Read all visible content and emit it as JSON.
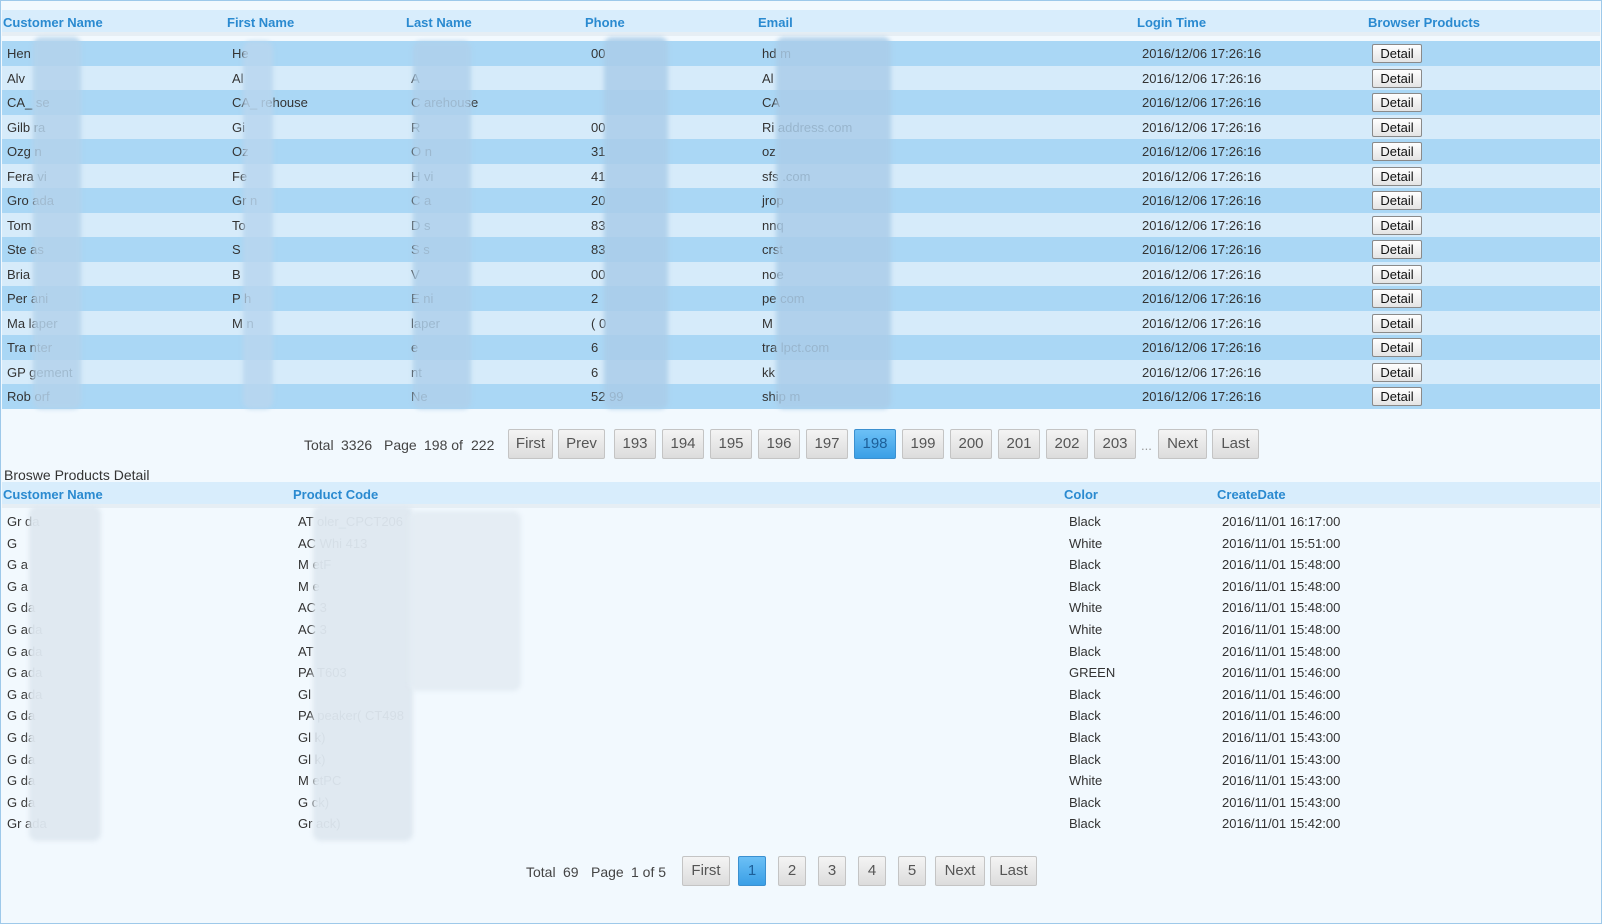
{
  "customers": {
    "columns": [
      "Customer Name",
      "First Name",
      "Last Name",
      "Phone",
      "Email",
      "Login Time",
      "Browser Products"
    ],
    "detail_label": "Detail",
    "rows": [
      [
        "Hen",
        "He",
        "",
        "00",
        "hd                              m",
        "2016/12/06 17:26:16"
      ],
      [
        "Alv",
        "Al",
        "A",
        "",
        "Al",
        "2016/12/06 17:26:16"
      ],
      [
        "CA_            se",
        "CA_        rehouse",
        "C        arehouse",
        "",
        "CA",
        "2016/12/06 17:26:16"
      ],
      [
        "Gilb          ra",
        "Gi",
        "R",
        "00",
        "Ri                          address.com",
        "2016/12/06 17:26:16"
      ],
      [
        "Ozg           n",
        "Oz",
        "O        n",
        "31",
        "oz",
        "2016/12/06 17:26:16"
      ],
      [
        "Fera          vi",
        "Fe",
        "H        vi",
        "41",
        "sfs                        .com",
        "2016/12/06 17:26:16"
      ],
      [
        "Gro           ada",
        "Gr          n",
        "C        a",
        "20",
        "jrop",
        "2016/12/06 17:26:16"
      ],
      [
        "Tom",
        "To",
        "D        s",
        "83",
        "nnq",
        "2016/12/06 17:26:16"
      ],
      [
        "Ste           as",
        "S",
        "S        s",
        "83",
        "crst",
        "2016/12/06 17:26:16"
      ],
      [
        "Bria",
        "B",
        "V",
        "00",
        "noe",
        "2016/12/06 17:26:16"
      ],
      [
        "Per           ani",
        "P          h",
        "E        ni",
        "2",
        "pe                          com",
        "2016/12/06 17:26:16"
      ],
      [
        "Ma           laper",
        "M          n",
        "        laper",
        "(                0",
        "M",
        "2016/12/06 17:26:16"
      ],
      [
        "Tra           nter",
        "",
        "        e",
        "6",
        "tra                        lpct.com",
        "2016/12/06 17:26:16"
      ],
      [
        "GP            gement",
        "",
        "        nt",
        "6",
        "kk",
        "2016/12/06 17:26:16"
      ],
      [
        "Rob           orf",
        "",
        "Ne",
        "52        99",
        "ship                   m",
        "2016/12/06 17:26:16"
      ]
    ]
  },
  "pager1": {
    "total_label": "Total",
    "total": "3326",
    "page_label": "Page",
    "page_info": "198 of",
    "page_count": "222",
    "first": "First",
    "prev": "Prev",
    "pages": [
      "193",
      "194",
      "195",
      "196",
      "197",
      "198",
      "199",
      "200",
      "201",
      "202",
      "203"
    ],
    "active": "198",
    "ellipsis": "...",
    "next": "Next",
    "last": "Last"
  },
  "detail_section_label": "Broswe Products Detail",
  "products": {
    "columns": [
      "Customer Name",
      "Product Code",
      "Color",
      "CreateDate"
    ],
    "rows": [
      [
        "Gr         da",
        "AT                   oler_CPCT206",
        "Black",
        "2016/11/01 16:17:00"
      ],
      [
        "G",
        "AC                  Whi         413",
        "White",
        "2016/11/01 15:51:00"
      ],
      [
        "G            a",
        "M                   etF",
        "Black",
        "2016/11/01 15:48:00"
      ],
      [
        "G            a",
        "M                   e",
        "Black",
        "2016/11/01 15:48:00"
      ],
      [
        "G           da",
        "AC                           3",
        "White",
        "2016/11/01 15:48:00"
      ],
      [
        "G           ada",
        "AC                           3",
        "White",
        "2016/11/01 15:48:00"
      ],
      [
        "G           ada",
        "AT",
        "Black",
        "2016/11/01 15:48:00"
      ],
      [
        "G           ada",
        "PA                            T603",
        "GREEN",
        "2016/11/01 15:46:00"
      ],
      [
        "G           ada",
        "Gl",
        "Black",
        "2016/11/01 15:46:00"
      ],
      [
        "G           da",
        "PA                  peaker(         CT498",
        "Black",
        "2016/11/01 15:46:00"
      ],
      [
        "G           da",
        "Gl                  k)",
        "Black",
        "2016/11/01 15:43:00"
      ],
      [
        "G           da",
        "Gl                  k)",
        "Black",
        "2016/11/01 15:43:00"
      ],
      [
        "G           da",
        "M                   etPC",
        "White",
        "2016/11/01 15:43:00"
      ],
      [
        "G           da",
        "G                   ck)",
        "Black",
        "2016/11/01 15:43:00"
      ],
      [
        "Gr          ada",
        "Gr                 ack)",
        "Black",
        "2016/11/01 15:42:00"
      ]
    ]
  },
  "pager2": {
    "total_label": "Total",
    "total": "69",
    "page_label": "Page",
    "page_info": "1 of 5",
    "first": "First",
    "pages": [
      "1",
      "2",
      "3",
      "4",
      "5"
    ],
    "active": "1",
    "next": "Next",
    "last": "Last"
  }
}
